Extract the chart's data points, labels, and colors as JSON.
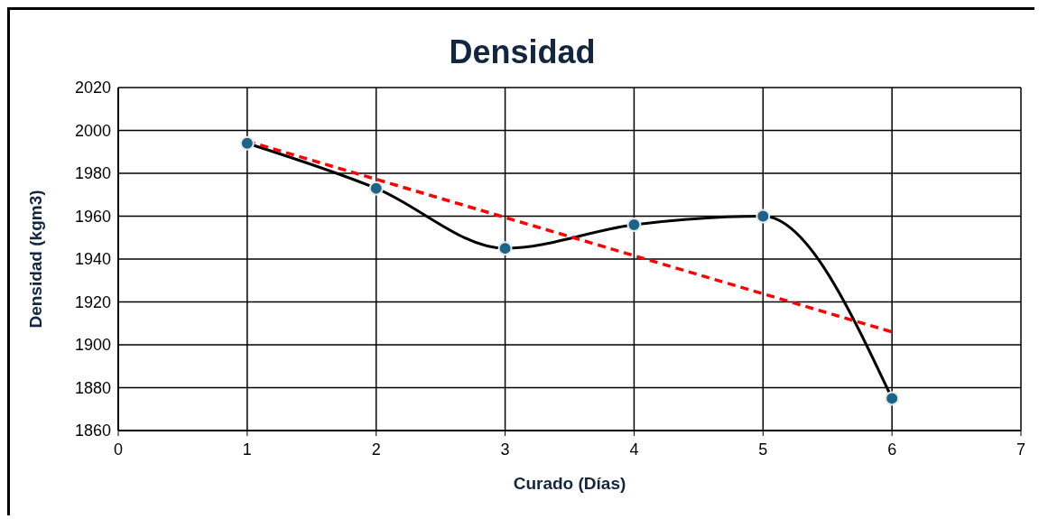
{
  "chart_data": {
    "type": "line",
    "title": "Densidad",
    "xlabel": "Curado (Días)",
    "ylabel": "Densidad (kgm3)",
    "x": [
      1,
      2,
      3,
      4,
      5,
      6
    ],
    "series": [
      {
        "color": "#000000",
        "values": [
          1994,
          1973,
          1945,
          1956,
          1960,
          1875
        ],
        "marker": "circle",
        "line_style": "solid"
      },
      {
        "type": "line",
        "color": "#ff0000",
        "x": [
          1,
          6
        ],
        "values": [
          1995,
          1906
        ],
        "marker": "none",
        "line_style": "dashed"
      }
    ],
    "xlim": [
      0,
      7
    ],
    "xticks": [
      0,
      1,
      2,
      3,
      4,
      5,
      6,
      7
    ],
    "ylim": [
      1860,
      2020
    ],
    "yticks": [
      1860,
      1880,
      1900,
      1920,
      1940,
      1960,
      1980,
      2000,
      2020
    ],
    "grid": true
  }
}
